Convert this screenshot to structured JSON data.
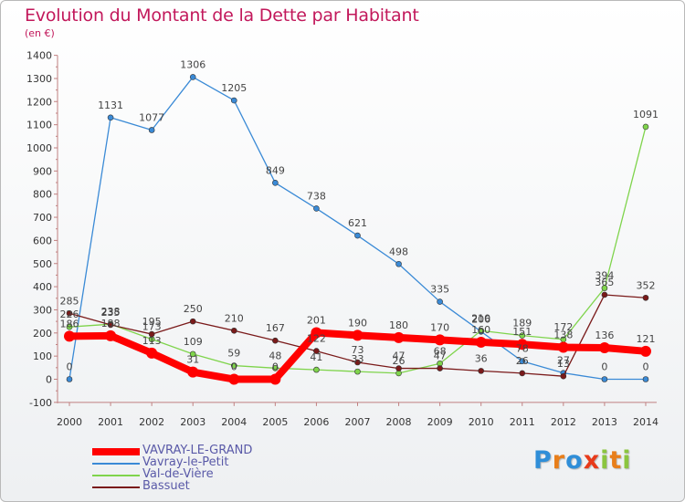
{
  "chart_data": {
    "type": "line",
    "title": "Evolution du Montant de la Dette par Habitant",
    "subtitle": "(en €)",
    "x": [
      2000,
      2001,
      2002,
      2003,
      2004,
      2005,
      2006,
      2007,
      2008,
      2009,
      2010,
      2011,
      2012,
      2013,
      2014
    ],
    "ylim": [
      -100,
      1400
    ],
    "yticks": [
      -100,
      0,
      100,
      200,
      300,
      400,
      500,
      600,
      700,
      800,
      900,
      1000,
      1100,
      1200,
      1300,
      1400
    ],
    "grid": false,
    "legend_position": "bottom-left",
    "series": [
      {
        "name": "VAVRAY-LE-GRAND",
        "color": "#ff0000",
        "values": [
          186,
          188,
          113,
          31,
          0,
          0,
          201,
          190,
          180,
          170,
          160,
          151,
          138,
          136,
          121
        ]
      },
      {
        "name": "Vavray-le-Petit",
        "color": "#3a8ad6",
        "values": [
          0,
          1131,
          1077,
          1306,
          1205,
          849,
          738,
          621,
          498,
          335,
          206,
          78,
          27,
          0,
          0
        ]
      },
      {
        "name": "Val-de-Vière",
        "color": "#7fd44c",
        "values": [
          226,
          238,
          173,
          109,
          59,
          48,
          41,
          33,
          26,
          68,
          210,
          189,
          172,
          394,
          1091
        ]
      },
      {
        "name": "Bassuet",
        "color": "#7a1a1a",
        "values": [
          285,
          235,
          195,
          250,
          210,
          167,
          122,
          73,
          47,
          47,
          36,
          26,
          13,
          365,
          352
        ]
      }
    ]
  },
  "logo": {
    "letters": [
      "P",
      "r",
      "o",
      "x",
      "i",
      "t",
      "i"
    ],
    "colors": [
      "#2f8ed8",
      "#e87e1a",
      "#2f8ed8",
      "#e83a1a",
      "#8bc53f",
      "#e87e1a",
      "#8bc53f"
    ]
  }
}
